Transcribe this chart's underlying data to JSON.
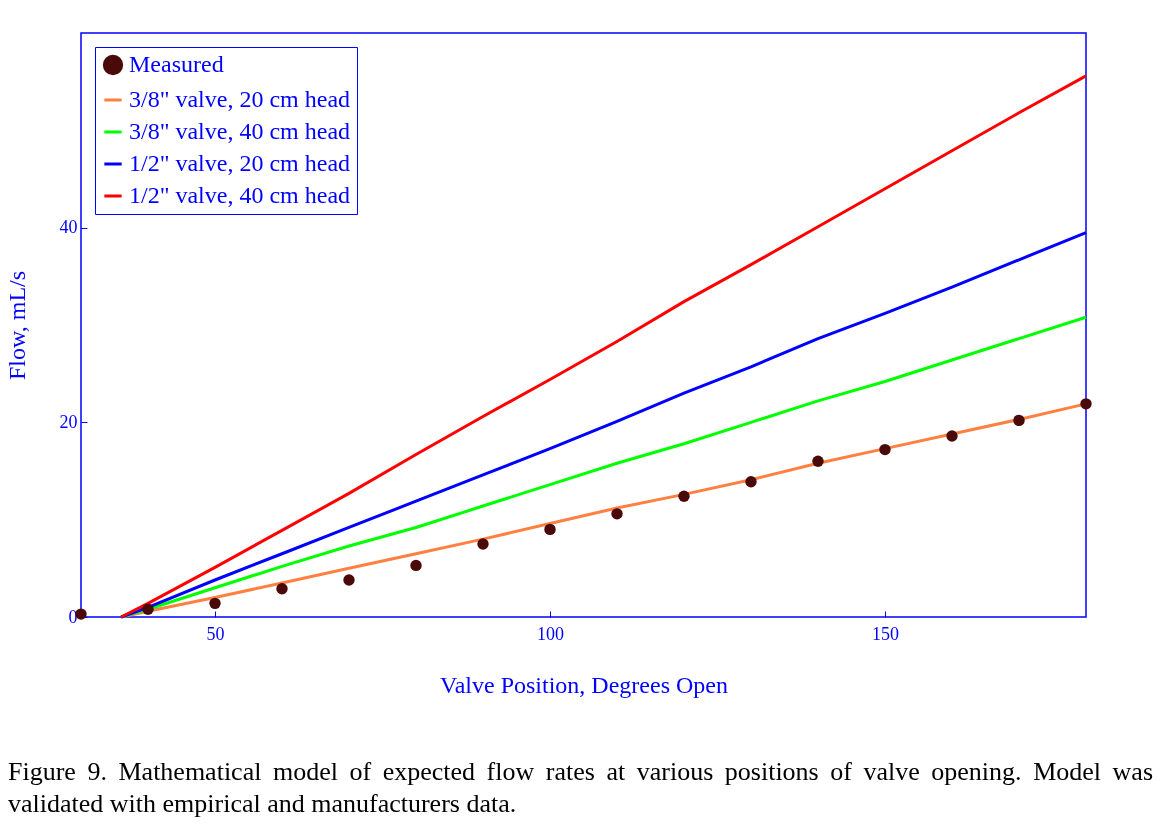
{
  "chart_data": {
    "type": "line",
    "xlabel": "Valve Position, Degrees Open",
    "ylabel": "Flow, mL/s",
    "xlim": [
      30,
      180
    ],
    "ylim": [
      0,
      60
    ],
    "xticks": [
      50,
      100,
      150
    ],
    "yticks": [
      0,
      20,
      40
    ],
    "grid": false,
    "legend": "top left",
    "series": [
      {
        "name": "Measured",
        "type": "scatter",
        "marker": "circle",
        "color": "#4a0a0a",
        "x": [
          30,
          40,
          50,
          60,
          70,
          80,
          90,
          100,
          110,
          120,
          130,
          140,
          150,
          160,
          170,
          180
        ],
        "values": [
          0.3,
          0.8,
          1.4,
          2.9,
          3.8,
          5.3,
          7.5,
          9.0,
          10.6,
          12.4,
          13.9,
          16.0,
          17.2,
          18.6,
          20.2,
          21.9
        ]
      },
      {
        "name": "3/8\" valve, 20 cm head",
        "color": "#ff8040",
        "x": [
          36,
          40,
          50,
          60,
          70,
          80,
          90,
          100,
          110,
          120,
          130,
          140,
          150,
          160,
          170,
          180
        ],
        "values": [
          0,
          0.6,
          2.0,
          3.5,
          5.0,
          6.5,
          8.0,
          9.6,
          11.2,
          12.6,
          14.1,
          15.8,
          17.3,
          18.8,
          20.3,
          21.9
        ]
      },
      {
        "name": "3/8\" valve, 40 cm head",
        "color": "#00ff00",
        "x": [
          36,
          40,
          50,
          60,
          70,
          80,
          90,
          100,
          110,
          120,
          130,
          140,
          150,
          160,
          170,
          180
        ],
        "values": [
          0,
          0.8,
          3.0,
          5.2,
          7.3,
          9.2,
          11.4,
          13.6,
          15.8,
          17.8,
          20.0,
          22.2,
          24.2,
          26.4,
          28.6,
          30.8
        ]
      },
      {
        "name": "1/2\" valve, 20 cm head",
        "color": "#0000ff",
        "x": [
          36,
          40,
          50,
          60,
          70,
          80,
          90,
          100,
          110,
          120,
          130,
          140,
          150,
          160,
          170,
          180
        ],
        "values": [
          0,
          1.0,
          3.8,
          6.5,
          9.2,
          11.9,
          14.6,
          17.3,
          20.1,
          23.0,
          25.7,
          28.6,
          31.2,
          33.9,
          36.7,
          39.5
        ]
      },
      {
        "name": "1/2\" valve, 40 cm head",
        "color": "#ff0000",
        "x": [
          36,
          40,
          50,
          60,
          70,
          80,
          90,
          100,
          110,
          120,
          130,
          140,
          150,
          160,
          170,
          180
        ],
        "values": [
          0,
          1.4,
          5.1,
          8.9,
          12.7,
          16.7,
          20.6,
          24.4,
          28.3,
          32.4,
          36.2,
          40.1,
          44.0,
          47.9,
          51.8,
          55.6
        ]
      }
    ],
    "annotations": [
      "Figure 9.  Mathematical model of expected flow rates at various positions of valve opening.  Model was validated with empirical and manufacturers data."
    ]
  }
}
